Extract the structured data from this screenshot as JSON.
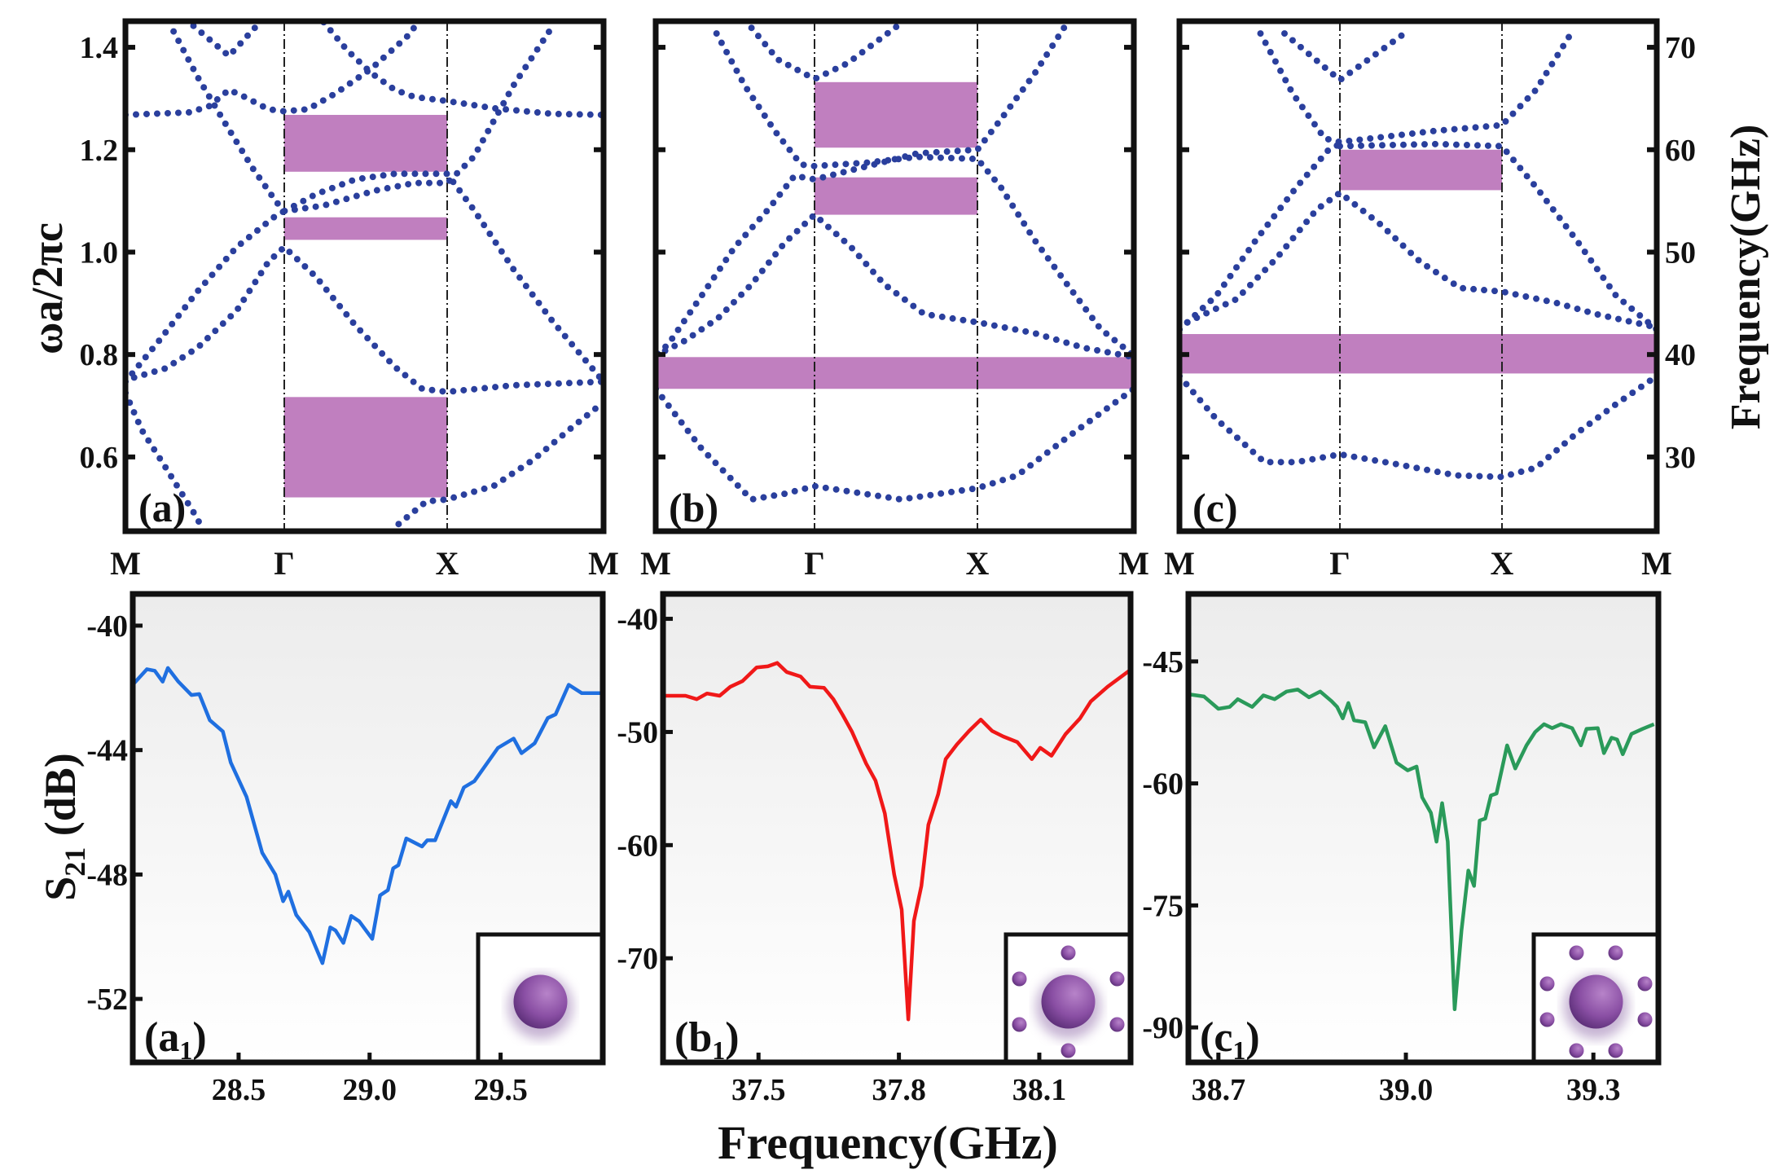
{
  "figure": {
    "band_ylabel": "ωa/2πc",
    "band_y2label": "Frequency(GHz)",
    "s21_ylabel": {
      "main": "S",
      "sub": "21",
      "unit": " (dB)"
    },
    "s21_xlabel": "Frequency(GHz)",
    "colors": {
      "band_dots": "#2a3f9d",
      "band_gap": "#c07fbf",
      "frame": "#111111"
    }
  },
  "chart_data": [
    {
      "type": "line",
      "panel_label": "(a)",
      "x_ticks": [
        "M",
        "Γ",
        "X",
        "M"
      ],
      "ylim": [
        0.455,
        1.451
      ],
      "y_ticks": [
        "0.6",
        "0.8",
        "1.0",
        "1.2",
        "1.4"
      ],
      "band_gaps": [
        {
          "k": [
            1,
            2
          ],
          "omega": [
            1.157,
            1.268
          ]
        },
        {
          "k": [
            1,
            2
          ],
          "omega": [
            1.024,
            1.068
          ]
        },
        {
          "k": [
            1,
            2
          ],
          "omega": [
            0.521,
            0.717
          ]
        }
      ],
      "bands": [
        [
          [
            0,
            1.268
          ],
          [
            0.403,
            1.273
          ],
          [
            0.527,
            1.285
          ],
          [
            0.652,
            1.317
          ],
          [
            0.751,
            1.303
          ],
          [
            0.9,
            1.279
          ],
          [
            1,
            1.275
          ],
          [
            1.145,
            1.279
          ],
          [
            1.315,
            1.31
          ],
          [
            1.533,
            1.358
          ],
          [
            1.751,
            1.42
          ],
          [
            1.823,
            1.449
          ]
        ],
        [
          [
            1.242,
            1.449
          ],
          [
            1.387,
            1.394
          ],
          [
            1.533,
            1.35
          ],
          [
            1.678,
            1.317
          ],
          [
            1.799,
            1.303
          ],
          [
            2,
            1.295
          ],
          [
            2.296,
            1.281
          ],
          [
            2.676,
            1.27
          ],
          [
            3,
            1.268
          ]
        ],
        [
          [
            0.428,
            1.442
          ],
          [
            0.652,
            1.383
          ],
          [
            0.826,
            1.442
          ]
        ],
        [
          [
            0.303,
            1.431
          ],
          [
            0.453,
            1.343
          ],
          [
            0.627,
            1.252
          ],
          [
            0.801,
            1.164
          ],
          [
            0.95,
            1.098
          ],
          [
            1,
            1.08
          ],
          [
            1.194,
            1.113
          ],
          [
            1.436,
            1.142
          ],
          [
            1.678,
            1.153
          ],
          [
            2,
            1.153
          ],
          [
            2.17,
            1.083
          ],
          [
            2.423,
            0.967
          ],
          [
            2.676,
            0.864
          ],
          [
            3,
            0.747
          ]
        ],
        [
          [
            1,
            1.08
          ],
          [
            1.242,
            1.091
          ],
          [
            1.557,
            1.12
          ],
          [
            1.799,
            1.135
          ],
          [
            2,
            1.135
          ],
          [
            2.17,
            1.186
          ],
          [
            2.423,
            1.325
          ],
          [
            2.676,
            1.442
          ]
        ],
        [
          [
            0,
            0.747
          ],
          [
            0.204,
            0.824
          ],
          [
            0.453,
            0.923
          ],
          [
            0.701,
            1.01
          ],
          [
            0.95,
            1.072
          ],
          [
            1,
            1.08
          ]
        ],
        [
          [
            0.055,
            0.755
          ],
          [
            0.254,
            0.773
          ],
          [
            0.453,
            0.813
          ],
          [
            0.701,
            0.886
          ],
          [
            0.9,
            0.981
          ],
          [
            1,
            1.01
          ],
          [
            1.194,
            0.952
          ],
          [
            1.436,
            0.857
          ],
          [
            1.678,
            0.776
          ],
          [
            1.847,
            0.733
          ],
          [
            2,
            0.727
          ],
          [
            2.423,
            0.74
          ],
          [
            3,
            0.747
          ]
        ],
        [
          [
            0,
            0.725
          ],
          [
            0.104,
            0.652
          ],
          [
            0.254,
            0.579
          ],
          [
            0.453,
            0.48
          ],
          [
            0.478,
            0.462
          ]
        ],
        [
          [
            1.702,
            0.469
          ],
          [
            1.872,
            0.513
          ],
          [
            2,
            0.517
          ],
          [
            2.296,
            0.543
          ],
          [
            2.549,
            0.594
          ],
          [
            2.803,
            0.659
          ],
          [
            3,
            0.707
          ]
        ]
      ]
    },
    {
      "type": "line",
      "panel_label": "(b)",
      "x_ticks": [
        "M",
        "Γ",
        "X",
        "M"
      ],
      "ylim": [
        0.455,
        1.451
      ],
      "band_gaps": [
        {
          "k": [
            1,
            2
          ],
          "omega": [
            1.204,
            1.332
          ]
        },
        {
          "k": [
            1,
            2
          ],
          "omega": [
            1.073,
            1.146
          ]
        },
        {
          "k": [
            0,
            3
          ],
          "omega": [
            0.733,
            0.795
          ]
        }
      ],
      "bands": [
        [
          [
            0.603,
            1.438
          ],
          [
            0.77,
            1.376
          ],
          [
            1,
            1.338
          ],
          [
            1.204,
            1.369
          ],
          [
            1.51,
            1.442
          ]
        ],
        [
          [
            0.383,
            1.427
          ],
          [
            0.561,
            1.325
          ],
          [
            0.749,
            1.237
          ],
          [
            0.916,
            1.171
          ],
          [
            1,
            1.168
          ],
          [
            1.327,
            1.175
          ],
          [
            1.633,
            1.186
          ],
          [
            2,
            1.182
          ],
          [
            2.149,
            1.127
          ],
          [
            2.362,
            1.025
          ],
          [
            2.574,
            0.937
          ],
          [
            2.787,
            0.85
          ],
          [
            3,
            0.798
          ]
        ],
        [
          [
            2.553,
            1.438
          ],
          [
            2.362,
            1.347
          ],
          [
            2.149,
            1.259
          ],
          [
            2,
            1.2
          ],
          [
            1.633,
            1.193
          ],
          [
            1.327,
            1.168
          ],
          [
            1,
            1.142
          ],
          [
            0.874,
            1.149
          ],
          [
            0.707,
            1.083
          ],
          [
            0.498,
            1.01
          ],
          [
            0.289,
            0.915
          ],
          [
            0.079,
            0.82
          ],
          [
            0,
            0.798
          ]
        ],
        [
          [
            0,
            0.798
          ],
          [
            0.184,
            0.827
          ],
          [
            0.393,
            0.871
          ],
          [
            0.603,
            0.937
          ],
          [
            0.812,
            1.018
          ],
          [
            1,
            1.073
          ],
          [
            1.224,
            1.01
          ],
          [
            1.429,
            0.937
          ],
          [
            1.673,
            0.879
          ],
          [
            2,
            0.863
          ],
          [
            2.362,
            0.842
          ],
          [
            2.681,
            0.813
          ],
          [
            3,
            0.795
          ]
        ],
        [
          [
            0,
            0.733
          ],
          [
            0.289,
            0.616
          ],
          [
            0.603,
            0.517
          ],
          [
            0.812,
            0.528
          ],
          [
            1,
            0.543
          ],
          [
            1.531,
            0.517
          ],
          [
            2,
            0.539
          ],
          [
            2.255,
            0.564
          ],
          [
            2.574,
            0.638
          ],
          [
            3,
            0.733
          ]
        ]
      ]
    },
    {
      "type": "line",
      "panel_label": "(c)",
      "x_ticks": [
        "M",
        "Γ",
        "X",
        "M"
      ],
      "ylim": [
        0.455,
        1.451
      ],
      "y2_ticks": [
        "30",
        "40",
        "50",
        "60",
        "70"
      ],
      "band_gaps": [
        {
          "k": [
            1,
            2
          ],
          "omega": [
            1.121,
            1.2
          ]
        },
        {
          "k": [
            0,
            3
          ],
          "omega": [
            0.763,
            0.84
          ]
        }
      ],
      "bands": [
        [
          [
            0.655,
            1.427
          ],
          [
            1,
            1.336
          ],
          [
            1.398,
            1.427
          ]
        ],
        [
          [
            0.505,
            1.427
          ],
          [
            0.705,
            1.31
          ],
          [
            0.905,
            1.222
          ],
          [
            1,
            1.215
          ],
          [
            1.595,
            1.237
          ],
          [
            2,
            1.248
          ],
          [
            2.22,
            1.317
          ],
          [
            2.454,
            1.431
          ]
        ],
        [
          [
            1,
            1.207
          ],
          [
            1.595,
            1.211
          ],
          [
            2,
            1.207
          ],
          [
            2.22,
            1.127
          ],
          [
            2.478,
            1.025
          ],
          [
            2.737,
            0.915
          ],
          [
            3,
            0.849
          ]
        ],
        [
          [
            0,
            0.849
          ],
          [
            0.23,
            0.915
          ],
          [
            0.48,
            1.025
          ],
          [
            0.73,
            1.127
          ],
          [
            0.93,
            1.2
          ],
          [
            1,
            1.211
          ]
        ],
        [
          [
            0,
            0.849
          ],
          [
            0.055,
            0.864
          ],
          [
            0.355,
            0.908
          ],
          [
            0.605,
            0.988
          ],
          [
            0.855,
            1.083
          ],
          [
            1,
            1.116
          ],
          [
            1.251,
            1.054
          ],
          [
            1.496,
            0.981
          ],
          [
            1.742,
            0.93
          ],
          [
            2,
            0.923
          ],
          [
            2.349,
            0.901
          ],
          [
            2.607,
            0.879
          ],
          [
            3,
            0.853
          ]
        ],
        [
          [
            0,
            0.758
          ],
          [
            0.23,
            0.674
          ],
          [
            0.53,
            0.59
          ],
          [
            0.73,
            0.59
          ],
          [
            1,
            0.605
          ],
          [
            1.349,
            0.586
          ],
          [
            1.717,
            0.564
          ],
          [
            2,
            0.561
          ],
          [
            2.22,
            0.579
          ],
          [
            2.478,
            0.645
          ],
          [
            2.737,
            0.703
          ],
          [
            3,
            0.758
          ]
        ]
      ]
    },
    {
      "type": "line",
      "panel_label": {
        "main": "(a",
        "sub": "1",
        "end": ")"
      },
      "color": "#1f6fe0",
      "inset_small_rods": 0,
      "xlim": [
        28.096,
        29.89
      ],
      "ylim": [
        -54.04,
        -38.98
      ],
      "x_ticks": [
        "28.5",
        "29.0",
        "29.5"
      ],
      "y_ticks": [
        "-40",
        "-44",
        "-48",
        "-52"
      ],
      "x": [
        28.1,
        28.15,
        28.18,
        28.21,
        28.23,
        28.27,
        28.32,
        28.35,
        28.39,
        28.44,
        28.47,
        28.53,
        28.59,
        28.64,
        28.67,
        28.69,
        28.72,
        28.77,
        28.82,
        28.85,
        28.87,
        28.9,
        28.93,
        28.96,
        29.01,
        29.04,
        29.07,
        29.09,
        29.11,
        29.14,
        29.2,
        29.22,
        29.25,
        29.31,
        29.33,
        29.36,
        29.4,
        29.49,
        29.55,
        29.58,
        29.63,
        29.68,
        29.71,
        29.76,
        29.81,
        29.85,
        29.88
      ],
      "y": [
        -41.86,
        -41.4,
        -41.45,
        -41.8,
        -41.36,
        -41.8,
        -42.23,
        -42.2,
        -43.04,
        -43.4,
        -44.4,
        -45.5,
        -47.3,
        -48.0,
        -48.86,
        -48.55,
        -49.3,
        -49.85,
        -50.85,
        -49.7,
        -49.8,
        -50.2,
        -49.33,
        -49.5,
        -50.07,
        -48.67,
        -48.5,
        -47.8,
        -47.7,
        -46.84,
        -47.1,
        -46.9,
        -46.9,
        -45.64,
        -45.82,
        -45.2,
        -45.0,
        -43.93,
        -43.63,
        -44.1,
        -43.78,
        -42.97,
        -42.85,
        -41.9,
        -42.17,
        -42.17,
        -42.17
      ]
    },
    {
      "type": "line",
      "panel_label": {
        "main": "(b",
        "sub": "1",
        "end": ")"
      },
      "color": "#f01818",
      "inset_small_rods": 6,
      "xlim": [
        37.296,
        38.295
      ],
      "ylim": [
        -79.2,
        -37.8
      ],
      "x_ticks": [
        "37.5",
        "37.8",
        "38.1"
      ],
      "y_ticks": [
        "-40",
        "-50",
        "-60",
        "-70"
      ],
      "x": [
        37.295,
        37.344,
        37.368,
        37.39,
        37.417,
        37.44,
        37.466,
        37.496,
        37.52,
        37.54,
        37.56,
        37.59,
        37.61,
        37.64,
        37.66,
        37.68,
        37.7,
        37.73,
        37.75,
        37.77,
        37.79,
        37.806,
        37.82,
        37.832,
        37.848,
        37.863,
        37.884,
        37.9,
        37.924,
        37.95,
        37.975,
        37.999,
        38.023,
        38.053,
        38.084,
        38.102,
        38.126,
        38.156,
        38.187,
        38.21,
        38.246,
        38.295
      ],
      "y": [
        -46.8,
        -46.8,
        -47.1,
        -46.6,
        -46.8,
        -46.0,
        -45.5,
        -44.3,
        -44.2,
        -43.9,
        -44.7,
        -45.1,
        -46.0,
        -46.1,
        -47.1,
        -48.5,
        -50.0,
        -52.8,
        -54.3,
        -57.2,
        -62.6,
        -65.7,
        -75.4,
        -66.7,
        -63.6,
        -58.2,
        -55.5,
        -52.4,
        -51.1,
        -49.9,
        -48.9,
        -49.9,
        -50.4,
        -50.9,
        -52.4,
        -51.4,
        -52.1,
        -50.2,
        -48.8,
        -47.3,
        -46.0,
        -44.5
      ]
    },
    {
      "type": "line",
      "panel_label": {
        "main": "(c",
        "sub": "1",
        "end": ")"
      },
      "color": "#2a9a5a",
      "inset_small_rods": 8,
      "xlim": [
        38.652,
        39.404
      ],
      "ylim": [
        -94.3,
        -36.7
      ],
      "x_ticks": [
        "38.7",
        "39.0",
        "39.3"
      ],
      "y_ticks": [
        "-45",
        "-60",
        "-75",
        "-90"
      ],
      "x": [
        38.652,
        38.677,
        38.7,
        38.718,
        38.731,
        38.754,
        38.772,
        38.79,
        38.809,
        38.827,
        38.845,
        38.863,
        38.881,
        38.89,
        38.899,
        38.908,
        38.917,
        38.935,
        38.949,
        38.967,
        38.985,
        39.003,
        39.017,
        39.026,
        39.04,
        39.049,
        39.058,
        39.067,
        39.078,
        39.089,
        39.1,
        39.109,
        39.118,
        39.127,
        39.136,
        39.145,
        39.162,
        39.175,
        39.193,
        39.207,
        39.221,
        39.234,
        39.248,
        39.266,
        39.28,
        39.289,
        39.307,
        39.317,
        39.329,
        39.338,
        39.347,
        39.361,
        39.379,
        39.397
      ],
      "y": [
        -49.03,
        -49.31,
        -50.82,
        -50.59,
        -49.64,
        -50.59,
        -49.17,
        -49.64,
        -48.7,
        -48.46,
        -49.41,
        -48.7,
        -49.88,
        -50.59,
        -52.0,
        -50.11,
        -52.24,
        -52.48,
        -55.56,
        -52.96,
        -57.45,
        -58.4,
        -57.93,
        -61.71,
        -63.61,
        -67.16,
        -62.42,
        -67.16,
        -87.77,
        -78.06,
        -70.71,
        -72.6,
        -64.56,
        -64.32,
        -61.48,
        -61.24,
        -55.32,
        -58.17,
        -55.32,
        -53.67,
        -52.72,
        -53.2,
        -52.72,
        -53.2,
        -55.32,
        -53.29,
        -53.2,
        -56.27,
        -54.38,
        -54.61,
        -56.41,
        -53.91,
        -53.29,
        -52.72
      ]
    }
  ]
}
